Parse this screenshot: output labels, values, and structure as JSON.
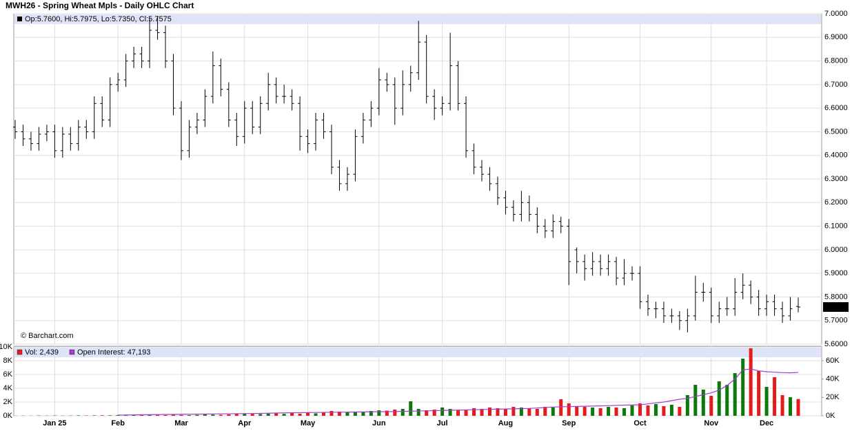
{
  "chart_data": [
    {
      "type": "ohlc",
      "title": "MWH26 - Spring Wheat Mpls - Daily OHLC Chart",
      "legend_text": "Op:5.7600, Hi:5.7975, Lo:5.7350, Cl:5.7575",
      "watermark": "© Barchart.com",
      "color": "#000000",
      "grid": true,
      "categories": [
        null,
        null,
        null,
        null,
        null,
        "Jan 25",
        null,
        null,
        null,
        null,
        null,
        null,
        null,
        "Feb",
        null,
        null,
        null,
        null,
        null,
        null,
        null,
        "Mar",
        null,
        null,
        null,
        null,
        null,
        null,
        null,
        "Apr",
        null,
        null,
        null,
        null,
        null,
        null,
        null,
        "May",
        null,
        null,
        null,
        null,
        null,
        null,
        null,
        null,
        "Jun",
        null,
        null,
        null,
        null,
        null,
        null,
        null,
        "Jul",
        null,
        null,
        null,
        null,
        null,
        null,
        null,
        "Aug",
        null,
        null,
        null,
        null,
        null,
        null,
        null,
        "Sep",
        null,
        null,
        null,
        null,
        null,
        null,
        null,
        null,
        "Oct",
        null,
        null,
        null,
        null,
        null,
        null,
        null,
        null,
        "Nov",
        null,
        null,
        null,
        null,
        null,
        null,
        "Dec",
        null,
        null,
        null,
        null
      ],
      "open": [
        6.52,
        6.5,
        6.47,
        6.45,
        6.49,
        6.5,
        6.42,
        6.49,
        6.45,
        6.52,
        6.5,
        6.62,
        6.55,
        6.7,
        6.72,
        6.8,
        6.83,
        6.8,
        6.93,
        6.92,
        6.8,
        6.6,
        6.42,
        6.52,
        6.55,
        6.65,
        6.78,
        6.68,
        6.55,
        6.48,
        6.6,
        6.52,
        6.62,
        6.7,
        6.65,
        6.65,
        6.62,
        6.48,
        6.45,
        6.55,
        6.5,
        6.35,
        6.28,
        6.32,
        6.48,
        6.55,
        6.6,
        6.72,
        6.7,
        6.6,
        6.7,
        6.75,
        6.88,
        6.65,
        6.6,
        6.62,
        6.78,
        6.62,
        6.42,
        6.35,
        6.32,
        6.28,
        6.22,
        6.18,
        6.15,
        6.2,
        6.15,
        6.1,
        6.08,
        6.12,
        6.1,
        6.0,
        5.95,
        5.92,
        5.95,
        5.92,
        5.95,
        5.88,
        5.9,
        5.9,
        5.78,
        5.75,
        5.75,
        5.72,
        5.72,
        5.7,
        5.72,
        5.82,
        5.82,
        5.72,
        5.75,
        5.75,
        5.82,
        5.85,
        5.8,
        5.75,
        5.78,
        5.75,
        5.72,
        5.76
      ],
      "high": [
        6.55,
        6.53,
        6.5,
        6.52,
        6.53,
        6.53,
        6.52,
        6.52,
        6.55,
        6.55,
        6.65,
        6.65,
        6.73,
        6.75,
        6.83,
        6.86,
        6.86,
        6.98,
        6.99,
        6.95,
        6.83,
        6.63,
        6.55,
        6.58,
        6.68,
        6.84,
        6.81,
        6.71,
        6.58,
        6.63,
        6.63,
        6.65,
        6.75,
        6.73,
        6.7,
        6.68,
        6.65,
        6.51,
        6.58,
        6.58,
        6.53,
        6.38,
        6.35,
        6.51,
        6.58,
        6.63,
        6.77,
        6.75,
        6.73,
        6.76,
        6.78,
        6.97,
        6.91,
        6.68,
        6.65,
        6.92,
        6.8,
        6.65,
        6.45,
        6.38,
        6.35,
        6.31,
        6.25,
        6.21,
        6.25,
        6.23,
        6.18,
        6.13,
        6.15,
        6.14,
        6.13,
        6.01,
        5.98,
        5.99,
        5.98,
        5.98,
        5.97,
        5.96,
        5.93,
        5.93,
        5.81,
        5.78,
        5.78,
        5.75,
        5.74,
        5.75,
        5.89,
        5.86,
        5.84,
        5.78,
        5.8,
        5.88,
        5.9,
        5.87,
        5.83,
        5.81,
        5.81,
        5.78,
        5.8,
        5.7975
      ],
      "low": [
        6.47,
        6.44,
        6.42,
        6.42,
        6.46,
        6.39,
        6.39,
        6.42,
        6.42,
        6.47,
        6.47,
        6.52,
        6.52,
        6.67,
        6.69,
        6.77,
        6.77,
        6.77,
        6.89,
        6.77,
        6.57,
        6.38,
        6.39,
        6.49,
        6.52,
        6.62,
        6.65,
        6.52,
        6.44,
        6.45,
        6.49,
        6.49,
        6.59,
        6.62,
        6.62,
        6.59,
        6.42,
        6.41,
        6.42,
        6.47,
        6.32,
        6.25,
        6.25,
        6.29,
        6.45,
        6.52,
        6.57,
        6.67,
        6.53,
        6.57,
        6.67,
        6.72,
        6.62,
        6.55,
        6.57,
        6.59,
        6.59,
        6.39,
        6.32,
        6.29,
        6.25,
        6.19,
        6.15,
        6.12,
        6.12,
        6.12,
        6.07,
        6.05,
        6.05,
        6.07,
        5.85,
        5.9,
        5.87,
        5.89,
        5.89,
        5.89,
        5.85,
        5.85,
        5.87,
        5.75,
        5.72,
        5.71,
        5.69,
        5.69,
        5.66,
        5.65,
        5.7,
        5.78,
        5.69,
        5.69,
        5.72,
        5.72,
        5.79,
        5.77,
        5.72,
        5.72,
        5.72,
        5.69,
        5.7,
        5.735
      ],
      "close": [
        6.5,
        6.47,
        6.45,
        6.49,
        6.5,
        6.42,
        6.49,
        6.45,
        6.52,
        6.5,
        6.62,
        6.55,
        6.7,
        6.72,
        6.8,
        6.83,
        6.8,
        6.93,
        6.92,
        6.8,
        6.6,
        6.42,
        6.52,
        6.55,
        6.65,
        6.78,
        6.68,
        6.55,
        6.48,
        6.6,
        6.52,
        6.62,
        6.7,
        6.65,
        6.65,
        6.62,
        6.48,
        6.45,
        6.55,
        6.5,
        6.35,
        6.28,
        6.32,
        6.48,
        6.55,
        6.6,
        6.72,
        6.7,
        6.6,
        6.7,
        6.75,
        6.88,
        6.65,
        6.6,
        6.62,
        6.78,
        6.62,
        6.42,
        6.35,
        6.32,
        6.28,
        6.22,
        6.18,
        6.15,
        6.2,
        6.15,
        6.1,
        6.08,
        6.12,
        6.1,
        5.95,
        5.95,
        5.92,
        5.95,
        5.92,
        5.95,
        5.88,
        5.9,
        5.9,
        5.78,
        5.75,
        5.75,
        5.72,
        5.72,
        5.7,
        5.72,
        5.82,
        5.82,
        5.72,
        5.75,
        5.75,
        5.82,
        5.85,
        5.8,
        5.75,
        5.78,
        5.75,
        5.72,
        5.75,
        5.7575
      ],
      "last_price": {
        "value": 5.7575,
        "label": "5.7575"
      },
      "ylim": [
        5.6,
        7.0
      ],
      "yticks": [
        {
          "value": 5.6,
          "label": "5.6000"
        },
        {
          "value": 5.7,
          "label": "5.7000"
        },
        {
          "value": 5.8,
          "label": "5.8000"
        },
        {
          "value": 5.9,
          "label": "5.9000"
        },
        {
          "value": 6.0,
          "label": "6.0000"
        },
        {
          "value": 6.1,
          "label": "6.1000"
        },
        {
          "value": 6.2,
          "label": "6.2000"
        },
        {
          "value": 6.3,
          "label": "6.3000"
        },
        {
          "value": 6.4,
          "label": "6.4000"
        },
        {
          "value": 6.5,
          "label": "6.5000"
        },
        {
          "value": 6.6,
          "label": "6.6000"
        },
        {
          "value": 6.7,
          "label": "6.7000"
        },
        {
          "value": 6.8,
          "label": "6.8000"
        },
        {
          "value": 6.9,
          "label": "6.9000"
        },
        {
          "value": 7.0,
          "label": "7.0000"
        }
      ]
    },
    {
      "type": "bar",
      "grid": true,
      "up_color": "#0b7a0b",
      "down_color": "#e31b1b",
      "series": [
        {
          "name": "Vol: 2,439",
          "color": "#e31b1b",
          "values": [
            20,
            30,
            20,
            40,
            30,
            50,
            30,
            40,
            60,
            50,
            60,
            80,
            70,
            100,
            90,
            120,
            100,
            150,
            130,
            110,
            150,
            120,
            100,
            130,
            200,
            180,
            150,
            200,
            250,
            300,
            280,
            250,
            300,
            350,
            280,
            400,
            300,
            450,
            350,
            500,
            700,
            600,
            550,
            500,
            600,
            700,
            800,
            750,
            900,
            1000,
            2100,
            1000,
            800,
            900,
            1200,
            1000,
            800,
            900,
            1100,
            1000,
            1200,
            1100,
            1000,
            1300,
            1200,
            1100,
            1000,
            1300,
            1200,
            2400,
            1800,
            1400,
            1300,
            1200,
            1100,
            1300,
            1200,
            1100,
            1500,
            1800,
            1500,
            1700,
            1400,
            1600,
            1300,
            3000,
            4500,
            3800,
            2900,
            5000,
            4500,
            6200,
            8300,
            9800,
            6500,
            4200,
            5600,
            3000,
            2700,
            2439
          ]
        },
        {
          "name": "Open Interest: 47,193",
          "color": "#a43ad0",
          "axis": "y2",
          "values": [
            null,
            null,
            null,
            null,
            null,
            null,
            null,
            null,
            null,
            null,
            null,
            null,
            null,
            800,
            900,
            1000,
            1100,
            1200,
            1300,
            1400,
            1500,
            1600,
            1700,
            1800,
            1900,
            2000,
            2100,
            2200,
            2300,
            2400,
            2500,
            2600,
            2800,
            3000,
            3200,
            3300,
            3400,
            3500,
            3600,
            3700,
            3800,
            3900,
            4000,
            4100,
            4200,
            4300,
            4400,
            4500,
            4600,
            4800,
            5000,
            5200,
            5400,
            5600,
            5800,
            6000,
            6200,
            6400,
            6600,
            6800,
            7000,
            7200,
            7400,
            7600,
            7800,
            8000,
            8500,
            9000,
            9500,
            9800,
            10000,
            10200,
            10400,
            10600,
            10800,
            11000,
            11300,
            11600,
            11800,
            12000,
            13000,
            14000,
            15000,
            16500,
            18000,
            19000,
            21000,
            23000,
            25000,
            28000,
            33000,
            40000,
            50000,
            51000,
            49000,
            48000,
            47500,
            47000,
            46800,
            47193
          ]
        }
      ],
      "ylim": [
        0,
        10000
      ],
      "yticks": [
        {
          "value": 0,
          "label": "0K"
        },
        {
          "value": 2000,
          "label": "2K"
        },
        {
          "value": 4000,
          "label": "4K"
        },
        {
          "value": 6000,
          "label": "6K"
        },
        {
          "value": 8000,
          "label": "8K"
        },
        {
          "value": 10000,
          "label": "10K"
        }
      ],
      "y2lim": [
        0,
        75000
      ],
      "y2ticks": [
        {
          "value": 0,
          "label": "0K"
        },
        {
          "value": 20000,
          "label": "20K"
        },
        {
          "value": 40000,
          "label": "40K"
        },
        {
          "value": 60000,
          "label": "60K"
        }
      ]
    }
  ]
}
